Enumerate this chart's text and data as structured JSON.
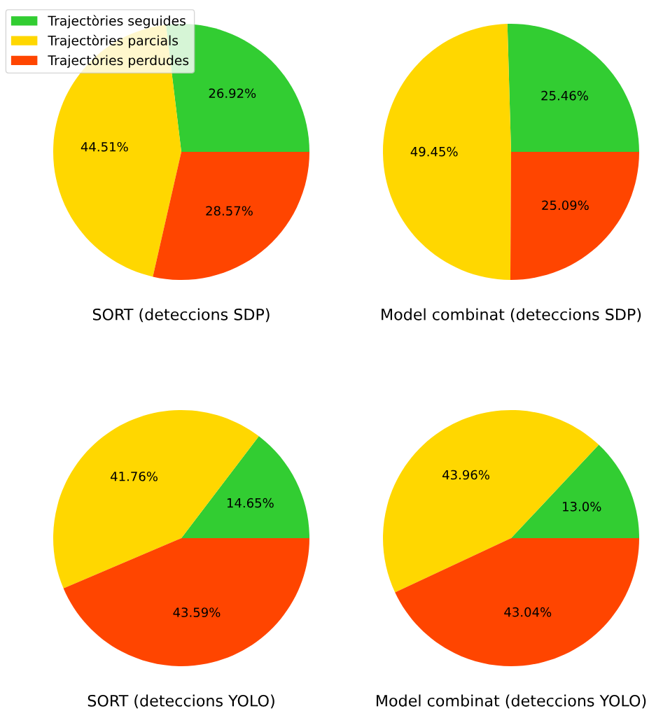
{
  "chart_data": [
    {
      "type": "pie",
      "xlabel": "SORT (deteccions SDP)",
      "categories": [
        "Trajectòries seguides",
        "Trajectòries parcials",
        "Trajectòries perdudes"
      ],
      "values": [
        26.92,
        44.51,
        28.57
      ],
      "value_labels": [
        "26.92%",
        "44.51%",
        "28.57%"
      ],
      "colors": [
        "#32cd32",
        "#ffd700",
        "#ff4500"
      ],
      "legend": "top left"
    },
    {
      "type": "pie",
      "xlabel": "Model combinat (deteccions SDP)",
      "categories": [
        null,
        null,
        null
      ],
      "values": [
        25.46,
        49.45,
        25.09
      ],
      "value_labels": [
        "25.46%",
        "49.45%",
        "25.09%"
      ],
      "colors": [
        "#32cd32",
        "#ffd700",
        "#ff4500"
      ]
    },
    {
      "type": "pie",
      "xlabel": "SORT (deteccions YOLO)",
      "categories": [
        null,
        null,
        null
      ],
      "values": [
        14.65,
        41.76,
        43.59
      ],
      "value_labels": [
        "14.65%",
        "41.76%",
        "43.59%"
      ],
      "colors": [
        "#32cd32",
        "#ffd700",
        "#ff4500"
      ]
    },
    {
      "type": "pie",
      "xlabel": "Model combinat (deteccions YOLO)",
      "categories": [
        null,
        null,
        null
      ],
      "values": [
        13.0,
        43.96,
        43.04
      ],
      "value_labels": [
        "13.0%",
        "43.96%",
        "43.04%"
      ],
      "colors": [
        "#32cd32",
        "#ffd700",
        "#ff4500"
      ]
    }
  ]
}
